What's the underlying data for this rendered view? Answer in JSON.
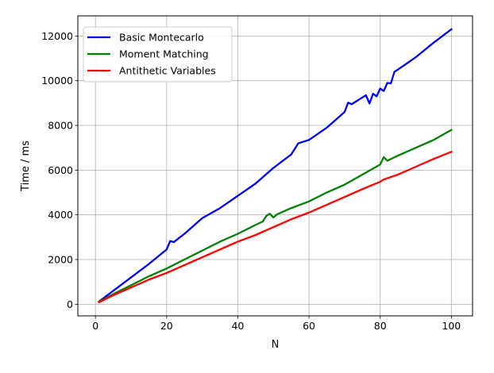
{
  "chart_data": {
    "type": "line",
    "title": "",
    "xlabel": "N",
    "ylabel": "Time / ms",
    "xlim": [
      -4.95,
      105.95
    ],
    "ylim": [
      -520,
      12900
    ],
    "x_ticks": [
      0,
      20,
      40,
      60,
      80,
      100
    ],
    "y_ticks": [
      0,
      2000,
      4000,
      6000,
      8000,
      10000,
      12000
    ],
    "grid": true,
    "legend_position": "top-left",
    "series": [
      {
        "name": "Basic Montecarlo",
        "color": "#0000ff",
        "points": [
          [
            1,
            120
          ],
          [
            5,
            600
          ],
          [
            10,
            1200
          ],
          [
            15,
            1800
          ],
          [
            20,
            2450
          ],
          [
            21,
            2830
          ],
          [
            22,
            2780
          ],
          [
            25,
            3150
          ],
          [
            30,
            3850
          ],
          [
            35,
            4300
          ],
          [
            40,
            4850
          ],
          [
            45,
            5400
          ],
          [
            50,
            6100
          ],
          [
            55,
            6700
          ],
          [
            57,
            7200
          ],
          [
            60,
            7350
          ],
          [
            65,
            7900
          ],
          [
            70,
            8600
          ],
          [
            71,
            9020
          ],
          [
            72,
            8950
          ],
          [
            75,
            9250
          ],
          [
            76,
            9350
          ],
          [
            77,
            8980
          ],
          [
            78,
            9420
          ],
          [
            79,
            9300
          ],
          [
            80,
            9650
          ],
          [
            81,
            9540
          ],
          [
            82,
            9900
          ],
          [
            83,
            9880
          ],
          [
            84,
            10400
          ],
          [
            85,
            10500
          ],
          [
            90,
            11050
          ],
          [
            95,
            11700
          ],
          [
            100,
            12300
          ]
        ]
      },
      {
        "name": "Moment Matching",
        "color": "#008000",
        "points": [
          [
            1,
            110
          ],
          [
            5,
            450
          ],
          [
            10,
            850
          ],
          [
            15,
            1250
          ],
          [
            20,
            1600
          ],
          [
            25,
            2000
          ],
          [
            30,
            2400
          ],
          [
            35,
            2800
          ],
          [
            40,
            3150
          ],
          [
            45,
            3550
          ],
          [
            47,
            3700
          ],
          [
            48,
            3950
          ],
          [
            49,
            4050
          ],
          [
            50,
            3880
          ],
          [
            51,
            4020
          ],
          [
            55,
            4300
          ],
          [
            60,
            4600
          ],
          [
            65,
            5000
          ],
          [
            70,
            5350
          ],
          [
            75,
            5800
          ],
          [
            80,
            6250
          ],
          [
            81,
            6580
          ],
          [
            82,
            6420
          ],
          [
            85,
            6650
          ],
          [
            90,
            7000
          ],
          [
            95,
            7350
          ],
          [
            100,
            7800
          ]
        ]
      },
      {
        "name": "Antithetic Variables",
        "color": "#ff0000",
        "points": [
          [
            1,
            90
          ],
          [
            5,
            400
          ],
          [
            10,
            750
          ],
          [
            15,
            1100
          ],
          [
            20,
            1400
          ],
          [
            25,
            1750
          ],
          [
            30,
            2100
          ],
          [
            35,
            2450
          ],
          [
            40,
            2800
          ],
          [
            45,
            3100
          ],
          [
            50,
            3450
          ],
          [
            55,
            3800
          ],
          [
            60,
            4100
          ],
          [
            65,
            4450
          ],
          [
            70,
            4800
          ],
          [
            75,
            5150
          ],
          [
            80,
            5480
          ],
          [
            81,
            5580
          ],
          [
            85,
            5800
          ],
          [
            90,
            6150
          ],
          [
            95,
            6500
          ],
          [
            100,
            6820
          ]
        ]
      }
    ]
  }
}
